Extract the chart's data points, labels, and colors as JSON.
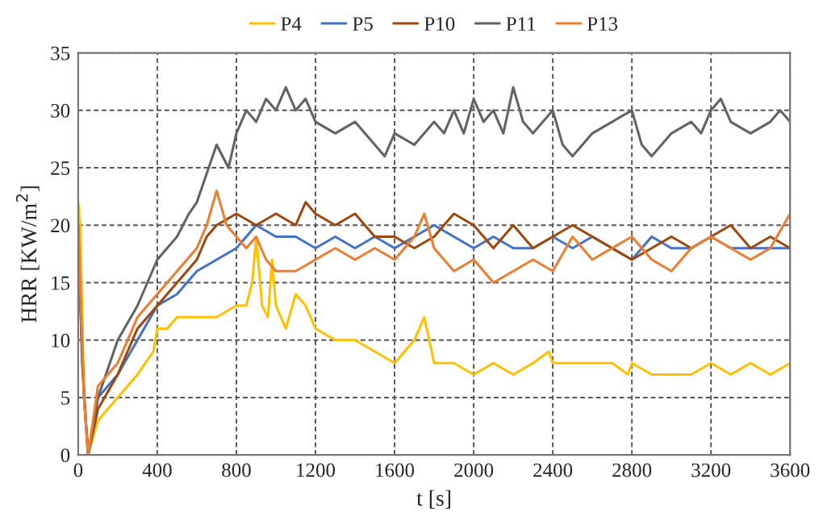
{
  "chart_data": {
    "type": "line",
    "xlabel": "t [s]",
    "ylabel": "HRR [KW/m$^{2}$]",
    "xlim": [
      0,
      3600
    ],
    "xticks": [
      0,
      400,
      800,
      1200,
      1600,
      2000,
      2400,
      2800,
      3200,
      3600
    ],
    "ylim": [
      0,
      35
    ],
    "yticks": [
      0,
      5,
      10,
      15,
      20,
      25,
      30,
      35
    ],
    "grid": true,
    "legend": "top",
    "line_style": "solid",
    "marker": "none",
    "series": [
      {
        "name": "P4",
        "color": "#ffc000",
        "x": [
          0,
          10,
          30,
          50,
          100,
          200,
          300,
          380,
          400,
          450,
          500,
          600,
          700,
          800,
          850,
          880,
          900,
          930,
          960,
          980,
          1000,
          1050,
          1100,
          1150,
          1200,
          1300,
          1400,
          1500,
          1600,
          1700,
          1750,
          1800,
          1900,
          2000,
          2100,
          2200,
          2300,
          2380,
          2400,
          2500,
          2600,
          2700,
          2780,
          2800,
          2900,
          3000,
          3100,
          3200,
          3300,
          3400,
          3500,
          3600
        ],
        "values": [
          22,
          20,
          5,
          0,
          3,
          5,
          7,
          9,
          11,
          11,
          12,
          12,
          12,
          13,
          13,
          15,
          19,
          13,
          12,
          17,
          13,
          11,
          14,
          13,
          11,
          10,
          10,
          9,
          8,
          10,
          12,
          8,
          8,
          7,
          8,
          7,
          8,
          9,
          8,
          8,
          8,
          8,
          7,
          8,
          7,
          7,
          7,
          8,
          7,
          8,
          7,
          8
        ]
      },
      {
        "name": "P5",
        "color": "#4472c4",
        "x": [
          50,
          100,
          200,
          300,
          400,
          500,
          600,
          700,
          800,
          850,
          900,
          1000,
          1100,
          1200,
          1300,
          1400,
          1500,
          1600,
          1700,
          1800,
          1900,
          2000,
          2100,
          2200,
          2300,
          2400,
          2500,
          2600,
          2700,
          2800,
          2900,
          3000,
          3100,
          3200,
          3300,
          3400,
          3500,
          3600
        ],
        "values": [
          0,
          5,
          7,
          10,
          13,
          14,
          16,
          17,
          18,
          19,
          20,
          19,
          19,
          18,
          19,
          18,
          19,
          18,
          19,
          20,
          19,
          18,
          19,
          18,
          18,
          19,
          18,
          19,
          18,
          17,
          19,
          18,
          18,
          19,
          18,
          18,
          18,
          18
        ]
      },
      {
        "name": "P10",
        "color": "#9e480e",
        "x": [
          0,
          30,
          50,
          100,
          200,
          300,
          400,
          500,
          600,
          650,
          700,
          800,
          900,
          1000,
          1100,
          1150,
          1200,
          1300,
          1400,
          1500,
          1600,
          1700,
          1800,
          1900,
          2000,
          2100,
          2200,
          2300,
          2400,
          2500,
          2600,
          2700,
          2800,
          2900,
          3000,
          3100,
          3200,
          3300,
          3400,
          3500,
          3600
        ],
        "values": [
          18,
          5,
          0,
          4,
          7,
          11,
          13,
          15,
          17,
          19,
          20,
          21,
          20,
          21,
          20,
          22,
          21,
          20,
          21,
          19,
          19,
          18,
          19,
          21,
          20,
          18,
          20,
          18,
          19,
          20,
          19,
          18,
          17,
          18,
          19,
          18,
          19,
          20,
          18,
          19,
          18
        ]
      },
      {
        "name": "P11",
        "color": "#636363",
        "x": [
          0,
          20,
          50,
          100,
          200,
          300,
          400,
          450,
          500,
          560,
          600,
          640,
          680,
          700,
          760,
          800,
          850,
          900,
          950,
          1000,
          1050,
          1100,
          1150,
          1200,
          1300,
          1400,
          1500,
          1550,
          1600,
          1700,
          1800,
          1850,
          1900,
          1950,
          2000,
          2050,
          2100,
          2150,
          2200,
          2250,
          2300,
          2400,
          2450,
          2500,
          2600,
          2700,
          2800,
          2850,
          2900,
          3000,
          3100,
          3150,
          3200,
          3250,
          3300,
          3400,
          3500,
          3550,
          3600
        ],
        "values": [
          20,
          8,
          0,
          5,
          10,
          13,
          17,
          18,
          19,
          21,
          22,
          24,
          26,
          27,
          25,
          28,
          30,
          29,
          31,
          30,
          32,
          30,
          31,
          29,
          28,
          29,
          27,
          26,
          28,
          27,
          29,
          28,
          30,
          28,
          31,
          29,
          30,
          28,
          32,
          29,
          28,
          30,
          27,
          26,
          28,
          29,
          30,
          27,
          26,
          28,
          29,
          28,
          30,
          31,
          29,
          28,
          29,
          30,
          29
        ]
      },
      {
        "name": "P13",
        "color": "#ed7d31",
        "x": [
          0,
          30,
          50,
          100,
          200,
          300,
          400,
          500,
          600,
          650,
          700,
          750,
          800,
          850,
          900,
          950,
          1000,
          1100,
          1200,
          1300,
          1400,
          1500,
          1600,
          1700,
          1750,
          1800,
          1900,
          2000,
          2100,
          2200,
          2300,
          2400,
          2500,
          2600,
          2700,
          2800,
          2900,
          3000,
          3100,
          3200,
          3300,
          3400,
          3500,
          3600
        ],
        "values": [
          20,
          5,
          0,
          6,
          8,
          12,
          14,
          16,
          18,
          20,
          23,
          20,
          19,
          18,
          19,
          17,
          16,
          16,
          17,
          18,
          17,
          18,
          17,
          19,
          21,
          18,
          16,
          17,
          15,
          16,
          17,
          16,
          19,
          17,
          18,
          19,
          17,
          16,
          18,
          19,
          18,
          17,
          18,
          21
        ]
      }
    ]
  }
}
